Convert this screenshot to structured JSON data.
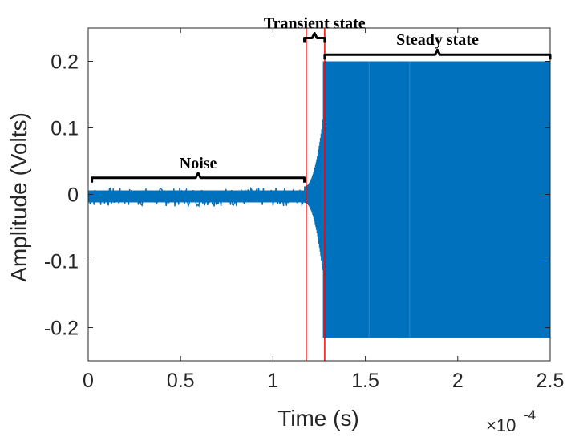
{
  "chart_data": {
    "type": "line",
    "xlabel": "Time (s)",
    "ylabel": "Amplitude (Volts)",
    "x_multiplier_label": "×10",
    "x_multiplier_exponent": "-4",
    "xlim": [
      0,
      2.5
    ],
    "ylim": [
      -0.25,
      0.25
    ],
    "x_ticks": [
      0,
      0.5,
      1,
      1.5,
      2,
      2.5
    ],
    "x_tick_labels": [
      "0",
      "0.5",
      "1",
      "1.5",
      "2",
      "2.5"
    ],
    "y_ticks": [
      0.2,
      0.1,
      0,
      -0.1,
      -0.2
    ],
    "y_tick_labels": [
      "0.2",
      "0.1",
      "0",
      "-0.1",
      "-0.2"
    ],
    "grid": false,
    "series": [
      {
        "color": "#0072BD",
        "segments": [
          {
            "x_start": 0,
            "x_end": 1.17,
            "amplitude_min": -0.018,
            "amplitude_max": 0.01
          },
          {
            "x_start": 1.17,
            "x_end": 1.27,
            "amplitude_min": -0.1,
            "amplitude_max": 0.1
          },
          {
            "x_start": 1.27,
            "x_end": 2.5,
            "amplitude_min": -0.215,
            "amplitude_max": 0.2
          }
        ]
      }
    ],
    "vertical_markers": [
      {
        "x": 1.18,
        "color": "#ff0000"
      },
      {
        "x": 1.28,
        "color": "#ff0000"
      }
    ],
    "annotations": [
      {
        "label": "Noise",
        "x_start": 0.02,
        "x_end": 1.17,
        "y": 0.025
      },
      {
        "label": "Transient state",
        "x_start": 1.17,
        "x_end": 1.28,
        "y": 0.235
      },
      {
        "label": "Steady state",
        "x_start": 1.28,
        "x_end": 2.5,
        "y": 0.21
      }
    ]
  }
}
